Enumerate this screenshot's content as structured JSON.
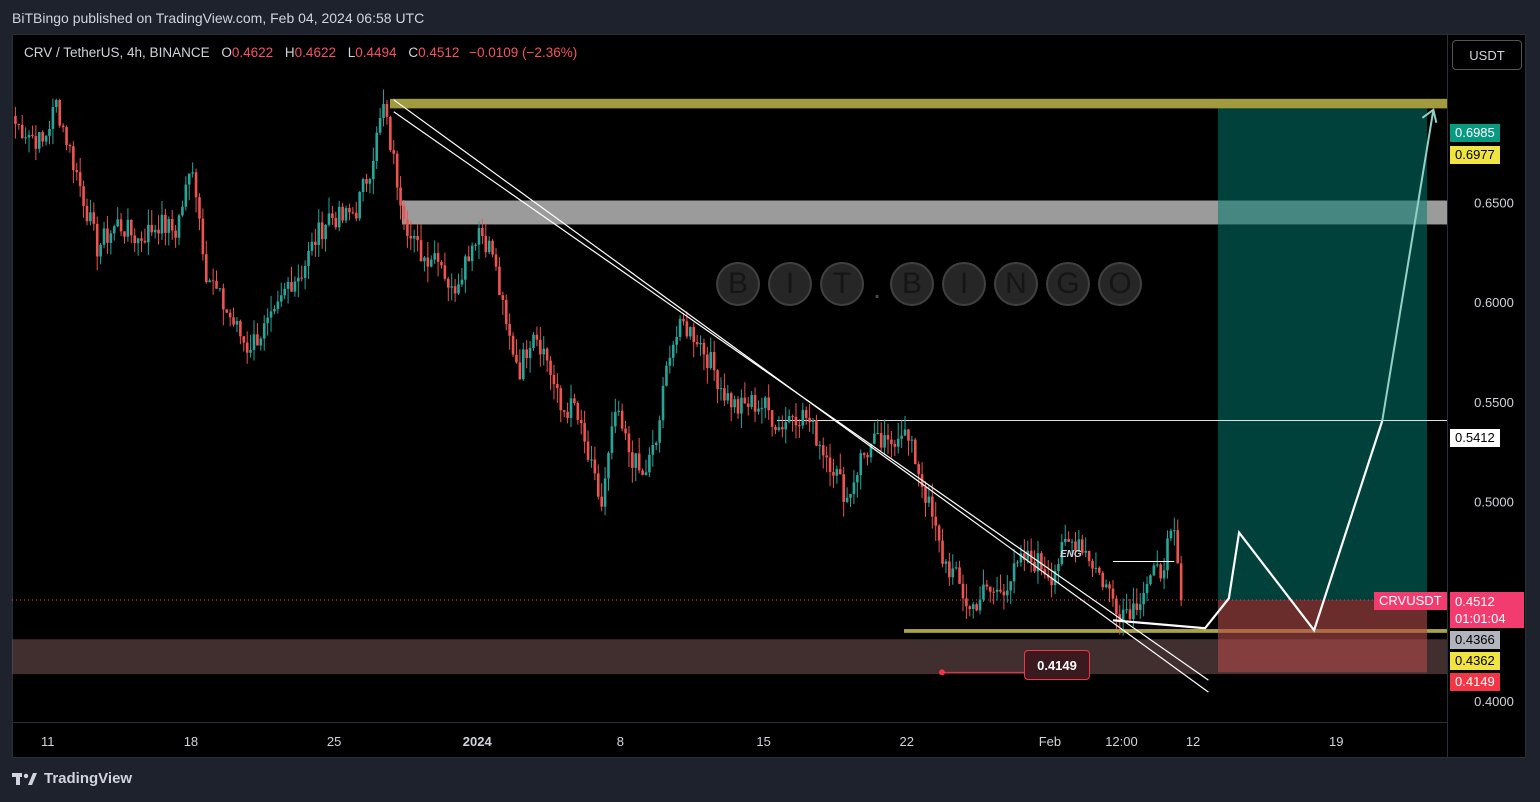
{
  "publisher": "BiTBingo published on TradingView.com, Feb 04, 2024 06:58 UTC",
  "footer_brand": "TradingView",
  "currency_button": "USDT",
  "watermark": [
    "B",
    "I",
    "T",
    ".",
    "B",
    "I",
    "N",
    "G",
    "O"
  ],
  "eng_label": "ENG",
  "legend": {
    "symbol": "CRV / TetherUS, 4h, BINANCE",
    "open_label": "O",
    "open": "0.4622",
    "high_label": "H",
    "high": "0.4622",
    "low_label": "L",
    "low": "0.4494",
    "close_label": "C",
    "close": "0.4512",
    "change": "−0.0109 (−2.36%)"
  },
  "tags": {
    "target_top": "0.6985",
    "target_zone": "0.6977",
    "level_mid": "0.5412",
    "symbol_tag": "CRVUSDT",
    "last_price": "0.4512",
    "countdown": "01:01:04",
    "support_top": "0.4366",
    "support_zone": "0.4362",
    "stop": "0.4149",
    "low_marker": "0.4149"
  },
  "colors": {
    "up": "#26a69a",
    "down": "#ef5350",
    "zone_gold": "#bdb54a",
    "zone_gray": "#cfcfcf",
    "profit": "#00796b",
    "loss": "#b24a4a"
  },
  "chart_data": {
    "type": "candlestick",
    "title": "CRV / TetherUS, 4h, BINANCE",
    "xlabel": "",
    "ylabel": "",
    "ylim": [
      0.39,
      0.735
    ],
    "y_ticks": [
      "0.6500",
      "0.6000",
      "0.5500",
      "0.5000",
      "0.4000"
    ],
    "x_ticks": [
      "11",
      "18",
      "25",
      "2024",
      "8",
      "15",
      "22",
      "Feb",
      "12:00",
      "12",
      "19"
    ],
    "x_tick_index": [
      9.5,
      51.5,
      93.5,
      135.5,
      177.5,
      219.5,
      261.5,
      303.5,
      324.5,
      345.5,
      387.5
    ],
    "x_range": [
      -1,
      420
    ],
    "zones": [
      {
        "name": "resistance-gold",
        "from": 0.6977,
        "to": 0.7025
      },
      {
        "name": "resistance-gray",
        "from": 0.6395,
        "to": 0.6515
      },
      {
        "name": "support-gold",
        "from": 0.4347,
        "to": 0.4366
      },
      {
        "name": "support-brown",
        "from": 0.414,
        "to": 0.4315
      }
    ],
    "levels": [
      0.5412,
      0.4512
    ],
    "anchor_points": [
      [
        0,
        0.69
      ],
      [
        8,
        0.68
      ],
      [
        12,
        0.7
      ],
      [
        18,
        0.665
      ],
      [
        24,
        0.628
      ],
      [
        30,
        0.64
      ],
      [
        36,
        0.632
      ],
      [
        42,
        0.64
      ],
      [
        47,
        0.636
      ],
      [
        52,
        0.67
      ],
      [
        56,
        0.616
      ],
      [
        60,
        0.602
      ],
      [
        64,
        0.59
      ],
      [
        68,
        0.578
      ],
      [
        72,
        0.585
      ],
      [
        76,
        0.592
      ],
      [
        80,
        0.61
      ],
      [
        84,
        0.616
      ],
      [
        88,
        0.632
      ],
      [
        92,
        0.644
      ],
      [
        96,
        0.642
      ],
      [
        100,
        0.647
      ],
      [
        104,
        0.668
      ],
      [
        108,
        0.698
      ],
      [
        112,
        0.662
      ],
      [
        116,
        0.632
      ],
      [
        120,
        0.623
      ],
      [
        124,
        0.626
      ],
      [
        128,
        0.605
      ],
      [
        132,
        0.622
      ],
      [
        136,
        0.638
      ],
      [
        140,
        0.625
      ],
      [
        144,
        0.587
      ],
      [
        148,
        0.567
      ],
      [
        152,
        0.588
      ],
      [
        156,
        0.572
      ],
      [
        160,
        0.546
      ],
      [
        164,
        0.548
      ],
      [
        168,
        0.522
      ],
      [
        172,
        0.498
      ],
      [
        176,
        0.545
      ],
      [
        180,
        0.526
      ],
      [
        184,
        0.512
      ],
      [
        188,
        0.53
      ],
      [
        192,
        0.578
      ],
      [
        196,
        0.589
      ],
      [
        200,
        0.583
      ],
      [
        204,
        0.57
      ],
      [
        208,
        0.555
      ],
      [
        212,
        0.547
      ],
      [
        216,
        0.55
      ],
      [
        220,
        0.548
      ],
      [
        224,
        0.538
      ],
      [
        228,
        0.545
      ],
      [
        232,
        0.543
      ],
      [
        236,
        0.53
      ],
      [
        240,
        0.518
      ],
      [
        244,
        0.502
      ],
      [
        248,
        0.522
      ],
      [
        252,
        0.53
      ],
      [
        256,
        0.528
      ],
      [
        260,
        0.538
      ],
      [
        264,
        0.522
      ],
      [
        268,
        0.498
      ],
      [
        272,
        0.472
      ],
      [
        276,
        0.462
      ],
      [
        280,
        0.446
      ],
      [
        284,
        0.455
      ],
      [
        288,
        0.455
      ],
      [
        292,
        0.462
      ],
      [
        296,
        0.472
      ],
      [
        300,
        0.47
      ],
      [
        304,
        0.464
      ],
      [
        308,
        0.478
      ],
      [
        312,
        0.482
      ],
      [
        316,
        0.47
      ],
      [
        320,
        0.458
      ],
      [
        324,
        0.446
      ],
      [
        328,
        0.448
      ],
      [
        332,
        0.46
      ],
      [
        336,
        0.466
      ],
      [
        338,
        0.478
      ],
      [
        340,
        0.482
      ],
      [
        342,
        0.451
      ]
    ],
    "projection": [
      [
        322,
        0.441
      ],
      [
        349,
        0.437
      ],
      [
        356,
        0.452
      ],
      [
        359,
        0.485
      ],
      [
        381,
        0.436
      ],
      [
        401,
        0.541
      ],
      [
        416,
        0.697
      ]
    ],
    "trendlines": [
      [
        [
          111,
          0.702
        ],
        [
          350,
          0.405
        ]
      ],
      [
        [
          111,
          0.696
        ],
        [
          350,
          0.411
        ]
      ]
    ]
  }
}
